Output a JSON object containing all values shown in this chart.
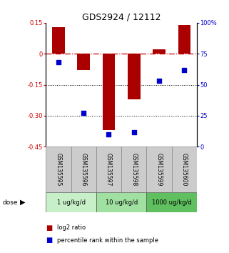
{
  "title": "GDS2924 / 12112",
  "samples": [
    "GSM135595",
    "GSM135596",
    "GSM135597",
    "GSM135598",
    "GSM135599",
    "GSM135600"
  ],
  "log2_ratio": [
    0.13,
    -0.08,
    -0.37,
    -0.22,
    0.02,
    0.14
  ],
  "percentile_rank": [
    68,
    27,
    10,
    12,
    53,
    62
  ],
  "ylim_left": [
    -0.45,
    0.15
  ],
  "ylim_right": [
    0,
    100
  ],
  "yticks_left": [
    0.15,
    0,
    -0.15,
    -0.3,
    -0.45
  ],
  "yticks_right": [
    100,
    75,
    50,
    25,
    0
  ],
  "ytick_labels_left": [
    "0.15",
    "0",
    "-0.15",
    "-0.30",
    "-0.45"
  ],
  "ytick_labels_right": [
    "100%",
    "75",
    "50",
    "25",
    "0"
  ],
  "dose_groups": [
    {
      "label": "1 ug/kg/d",
      "samples": [
        0,
        1
      ],
      "color": "#c8f0c8"
    },
    {
      "label": "10 ug/kg/d",
      "samples": [
        2,
        3
      ],
      "color": "#a0e0a0"
    },
    {
      "label": "1000 ug/kg/d",
      "samples": [
        4,
        5
      ],
      "color": "#60c060"
    }
  ],
  "bar_color": "#aa0000",
  "dot_color": "#0000cc",
  "bar_width": 0.5,
  "dot_size": 18,
  "hline_color": "#cc0000",
  "grid_color": "#000000",
  "title_fontsize": 9,
  "tick_fontsize": 6,
  "left_tick_color": "#cc0000",
  "right_tick_color": "#0000cc",
  "grid_lines": [
    -0.15,
    -0.3
  ],
  "sample_box_color": "#cccccc",
  "sample_box_edge": "#888888"
}
